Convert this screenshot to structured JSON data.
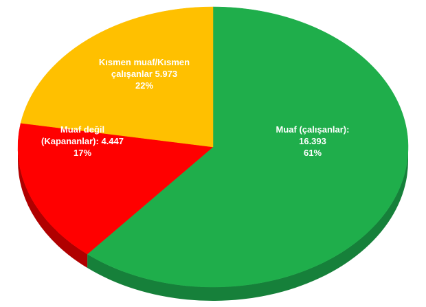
{
  "chart_data": {
    "type": "pie",
    "categories": [
      "Muaf (çalışanlar):",
      "Muaf değil (Kapananlar):",
      "Kısmen muaf/Kısmen çalışanlar"
    ],
    "values": [
      16393,
      4447,
      5973
    ],
    "value_labels": [
      "16.393",
      "4.447",
      "5.973"
    ],
    "percent_labels": [
      "61%",
      "17%",
      "22%"
    ],
    "colors": [
      "#1fae4b",
      "#ff0000",
      "#ffc000"
    ],
    "side_colors": [
      "#16803a",
      "#b00000",
      "#c99600"
    ]
  }
}
